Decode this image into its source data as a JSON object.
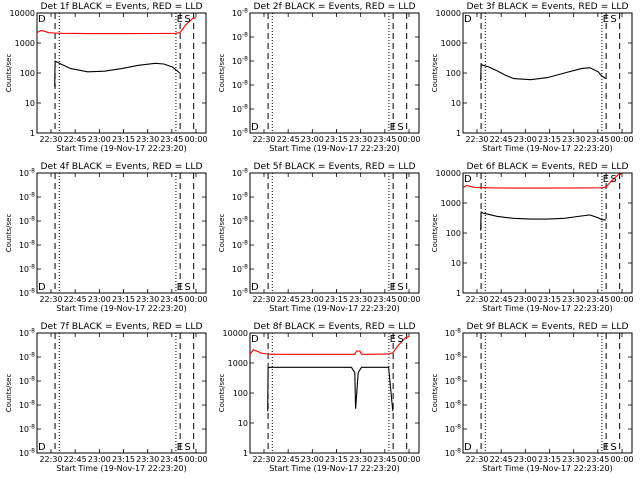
{
  "chart_data": [
    {
      "type": "line",
      "title": "Det 1f BLACK = Events, RED = LLD",
      "xlabel": "Start Time (19-Nov-17 22:23:20)",
      "ylabel": "Counts/sec",
      "xticks": [
        "22:30",
        "22:45",
        "23:00",
        "23:15",
        "23:30",
        "23:45",
        "00:00"
      ],
      "xlim_min": [
        0,
        100
      ],
      "yscale": "log",
      "ylim": [
        1,
        10000
      ],
      "yticks": [
        "1",
        "10",
        "100",
        "1000",
        "10000"
      ],
      "yticks_values": [
        1,
        10,
        100,
        1000,
        10000
      ],
      "markers": [
        {
          "label": "D",
          "x_min": 0
        },
        {
          "label": "E",
          "x_min": 85
        },
        {
          "label": "S",
          "x_min": 86
        }
      ],
      "vlines_dashed_min": [
        10.7,
        84.7,
        92.7
      ],
      "vlines_dotted_min": [
        13.2,
        82.2
      ],
      "series": [
        {
          "color": "#000000",
          "x": [
            10.5,
            10.7,
            12,
            14,
            20,
            30,
            40,
            50,
            60,
            70,
            75,
            80,
            82,
            84.5
          ],
          "y": [
            35,
            250,
            230,
            200,
            140,
            110,
            115,
            140,
            180,
            210,
            200,
            160,
            130,
            100
          ]
        },
        {
          "color": "#ff0000",
          "x": [
            0,
            2,
            4,
            7,
            10,
            15,
            30,
            50,
            70,
            82,
            84.5,
            88,
            92,
            94
          ],
          "y": [
            2200,
            2600,
            2500,
            2200,
            2150,
            2100,
            2050,
            2050,
            2080,
            2100,
            2200,
            4000,
            6500,
            7000
          ]
        }
      ]
    },
    {
      "type": "line",
      "title": "Det 2f BLACK = Events, RED = LLD",
      "xlabel": "Start Time (19-Nov-17 22:23:20)",
      "ylabel": "Counts/sec",
      "xticks": [
        "22:30",
        "22:45",
        "23:00",
        "23:15",
        "23:30",
        "23:45",
        "00:00"
      ],
      "xlim_min": [
        0,
        100
      ],
      "yscale": "linear",
      "ylim": [
        0,
        1
      ],
      "yticks": [
        "10^-8",
        "10^-8",
        "10^-8",
        "10^-8",
        "10^-8",
        "10^-8"
      ],
      "yticks_values": [
        1,
        0.8,
        0.6,
        0.4,
        0.2,
        0
      ],
      "markers": [
        {
          "label": "D",
          "x_min": 0
        },
        {
          "label": "E",
          "x_min": 85
        },
        {
          "label": "S",
          "x_min": 86
        }
      ],
      "vlines_dashed_min": [
        10.7,
        84.7,
        92.7
      ],
      "vlines_dotted_min": [
        13.2,
        82.2
      ],
      "series": []
    },
    {
      "type": "line",
      "title": "Det 3f BLACK = Events, RED = LLD",
      "xlabel": "Start Time (19-Nov-17 22:23:20)",
      "ylabel": "Counts/sec",
      "xticks": [
        "22:30",
        "22:45",
        "23:00",
        "23:15",
        "23:30",
        "23:45",
        "00:00"
      ],
      "xlim_min": [
        0,
        100
      ],
      "yscale": "log",
      "ylim": [
        1,
        10000
      ],
      "yticks": [
        "1",
        "10",
        "100",
        "1000",
        "10000"
      ],
      "yticks_values": [
        1,
        10,
        100,
        1000,
        10000
      ],
      "markers": [
        {
          "label": "D",
          "x_min": 0
        },
        {
          "label": "E",
          "x_min": 85
        },
        {
          "label": "S",
          "x_min": 86
        }
      ],
      "vlines_dashed_min": [
        10.7,
        84.7,
        92.7
      ],
      "vlines_dotted_min": [
        13.2,
        82.2
      ],
      "series": [
        {
          "color": "#000000",
          "x": [
            10.5,
            10.7,
            12,
            15,
            20,
            25,
            30,
            40,
            50,
            60,
            70,
            75,
            80,
            82,
            84.5
          ],
          "y": [
            55,
            190,
            180,
            160,
            120,
            85,
            65,
            60,
            70,
            100,
            140,
            150,
            110,
            80,
            65
          ]
        }
      ]
    },
    {
      "type": "line",
      "title": "Det 4f BLACK = Events, RED = LLD",
      "xlabel": "Start Time (19-Nov-17 22:23:20)",
      "ylabel": "Counts/sec",
      "xticks": [
        "22:30",
        "22:45",
        "23:00",
        "23:15",
        "23:30",
        "23:45",
        "00:00"
      ],
      "xlim_min": [
        0,
        100
      ],
      "yscale": "linear",
      "ylim": [
        0,
        1
      ],
      "yticks": [
        "10^-8",
        "10^-8",
        "10^-8",
        "10^-8",
        "10^-8",
        "10^-8"
      ],
      "yticks_values": [
        1,
        0.8,
        0.6,
        0.4,
        0.2,
        0
      ],
      "markers": [
        {
          "label": "D",
          "x_min": 0
        },
        {
          "label": "E",
          "x_min": 85
        },
        {
          "label": "S",
          "x_min": 86
        }
      ],
      "vlines_dashed_min": [
        10.7,
        84.7,
        92.7
      ],
      "vlines_dotted_min": [
        13.2,
        82.2
      ],
      "series": []
    },
    {
      "type": "line",
      "title": "Det 5f BLACK = Events, RED = LLD",
      "xlabel": "Start Time (19-Nov-17 22:23:20)",
      "ylabel": "Counts/sec",
      "xticks": [
        "22:30",
        "22:45",
        "23:00",
        "23:15",
        "23:30",
        "23:45",
        "00:00"
      ],
      "xlim_min": [
        0,
        100
      ],
      "yscale": "linear",
      "ylim": [
        0,
        1
      ],
      "yticks": [
        "10^-8",
        "10^-8",
        "10^-8",
        "10^-8",
        "10^-8",
        "10^-8"
      ],
      "yticks_values": [
        1,
        0.8,
        0.6,
        0.4,
        0.2,
        0
      ],
      "markers": [
        {
          "label": "D",
          "x_min": 0
        },
        {
          "label": "E",
          "x_min": 85
        },
        {
          "label": "S",
          "x_min": 86
        }
      ],
      "vlines_dashed_min": [
        10.7,
        84.7,
        92.7
      ],
      "vlines_dotted_min": [
        13.2,
        82.2
      ],
      "series": []
    },
    {
      "type": "line",
      "title": "Det 6f BLACK = Events, RED = LLD",
      "xlabel": "Start Time (19-Nov-17 22:23:20)",
      "ylabel": "Counts/sec",
      "xticks": [
        "22:30",
        "22:45",
        "23:00",
        "23:15",
        "23:30",
        "23:45",
        "00:00"
      ],
      "xlim_min": [
        0,
        100
      ],
      "yscale": "log",
      "ylim": [
        1,
        10000
      ],
      "yticks": [
        "1",
        "10",
        "100",
        "1000",
        "10000"
      ],
      "yticks_values": [
        1,
        10,
        100,
        1000,
        10000
      ],
      "markers": [
        {
          "label": "D",
          "x_min": 0
        },
        {
          "label": "E",
          "x_min": 85
        },
        {
          "label": "S",
          "x_min": 86
        }
      ],
      "vlines_dashed_min": [
        10.7,
        84.7,
        92.7
      ],
      "vlines_dotted_min": [
        13.2,
        82.2
      ],
      "series": [
        {
          "color": "#000000",
          "x": [
            10.5,
            10.7,
            12,
            15,
            20,
            25,
            30,
            40,
            50,
            60,
            70,
            75,
            80,
            82,
            84.5
          ],
          "y": [
            120,
            500,
            460,
            420,
            360,
            330,
            310,
            290,
            290,
            310,
            370,
            400,
            320,
            280,
            270
          ]
        },
        {
          "color": "#ff0000",
          "x": [
            0,
            2,
            4,
            7,
            10,
            15,
            30,
            50,
            70,
            82,
            84.5,
            88,
            92,
            94
          ],
          "y": [
            3200,
            3800,
            3600,
            3300,
            3250,
            3200,
            3150,
            3150,
            3180,
            3200,
            3400,
            5500,
            9000,
            9500
          ]
        }
      ]
    },
    {
      "type": "line",
      "title": "Det 7f BLACK = Events, RED = LLD",
      "xlabel": "Start Time (19-Nov-17 22:23:20)",
      "ylabel": "Counts/sec",
      "xticks": [
        "22:30",
        "22:45",
        "23:00",
        "23:15",
        "23:30",
        "23:45",
        "00:00"
      ],
      "xlim_min": [
        0,
        100
      ],
      "yscale": "linear",
      "ylim": [
        0,
        1
      ],
      "yticks": [
        "10^-8",
        "10^-8",
        "10^-8",
        "10^-8",
        "10^-8",
        "10^-8"
      ],
      "yticks_values": [
        1,
        0.8,
        0.6,
        0.4,
        0.2,
        0
      ],
      "markers": [
        {
          "label": "D",
          "x_min": 0
        },
        {
          "label": "E",
          "x_min": 85
        },
        {
          "label": "S",
          "x_min": 86
        }
      ],
      "vlines_dashed_min": [
        10.7,
        84.7,
        92.7
      ],
      "vlines_dotted_min": [
        13.2,
        82.2
      ],
      "series": []
    },
    {
      "type": "line",
      "title": "Det 8f BLACK = Events, RED = LLD",
      "xlabel": "Start Time (19-Nov-17 22:23:20)",
      "ylabel": "Counts/sec",
      "xticks": [
        "22:30",
        "22:45",
        "23:00",
        "23:15",
        "23:30",
        "23:45",
        "00:00"
      ],
      "xlim_min": [
        0,
        100
      ],
      "yscale": "log",
      "ylim": [
        1,
        10000
      ],
      "yticks": [
        "1",
        "10",
        "100",
        "1000",
        "10000"
      ],
      "yticks_values": [
        1,
        10,
        100,
        1000,
        10000
      ],
      "markers": [
        {
          "label": "D",
          "x_min": 0
        },
        {
          "label": "E",
          "x_min": 85
        },
        {
          "label": "S",
          "x_min": 86
        }
      ],
      "vlines_dashed_min": [
        10.7,
        84.7,
        92.7
      ],
      "vlines_dotted_min": [
        13.2,
        82.2
      ],
      "series": [
        {
          "color": "#000000",
          "x": [
            10.5,
            10.7,
            12,
            20,
            40,
            55,
            60,
            62,
            62.5,
            64,
            66,
            80,
            82,
            84.5
          ],
          "y": [
            25,
            700,
            720,
            720,
            720,
            720,
            720,
            480,
            30,
            480,
            720,
            720,
            720,
            25
          ]
        },
        {
          "color": "#ff0000",
          "x": [
            0,
            2,
            4,
            7,
            10,
            15,
            30,
            50,
            62,
            63,
            65,
            66,
            70,
            82,
            84.5,
            88,
            92,
            94
          ],
          "y": [
            1900,
            2800,
            2500,
            2100,
            2000,
            1950,
            1950,
            1950,
            1950,
            2500,
            2500,
            1950,
            1950,
            2000,
            2200,
            4000,
            7000,
            7500
          ]
        }
      ]
    },
    {
      "type": "line",
      "title": "Det 9f BLACK = Events, RED = LLD",
      "xlabel": "Start Time (19-Nov-17 22:23:20)",
      "ylabel": "Counts/sec",
      "xticks": [
        "22:30",
        "22:45",
        "23:00",
        "23:15",
        "23:30",
        "23:45",
        "00:00"
      ],
      "xlim_min": [
        0,
        100
      ],
      "yscale": "linear",
      "ylim": [
        0,
        1
      ],
      "yticks": [
        "10^-8",
        "10^-8",
        "10^-8",
        "10^-8",
        "10^-8",
        "10^-8"
      ],
      "yticks_values": [
        1,
        0.8,
        0.6,
        0.4,
        0.2,
        0
      ],
      "markers": [
        {
          "label": "D",
          "x_min": 0
        },
        {
          "label": "E",
          "x_min": 85
        },
        {
          "label": "S",
          "x_min": 86
        }
      ],
      "vlines_dashed_min": [
        10.7,
        84.7,
        92.7
      ],
      "vlines_dotted_min": [
        13.2,
        82.2
      ],
      "series": []
    }
  ]
}
